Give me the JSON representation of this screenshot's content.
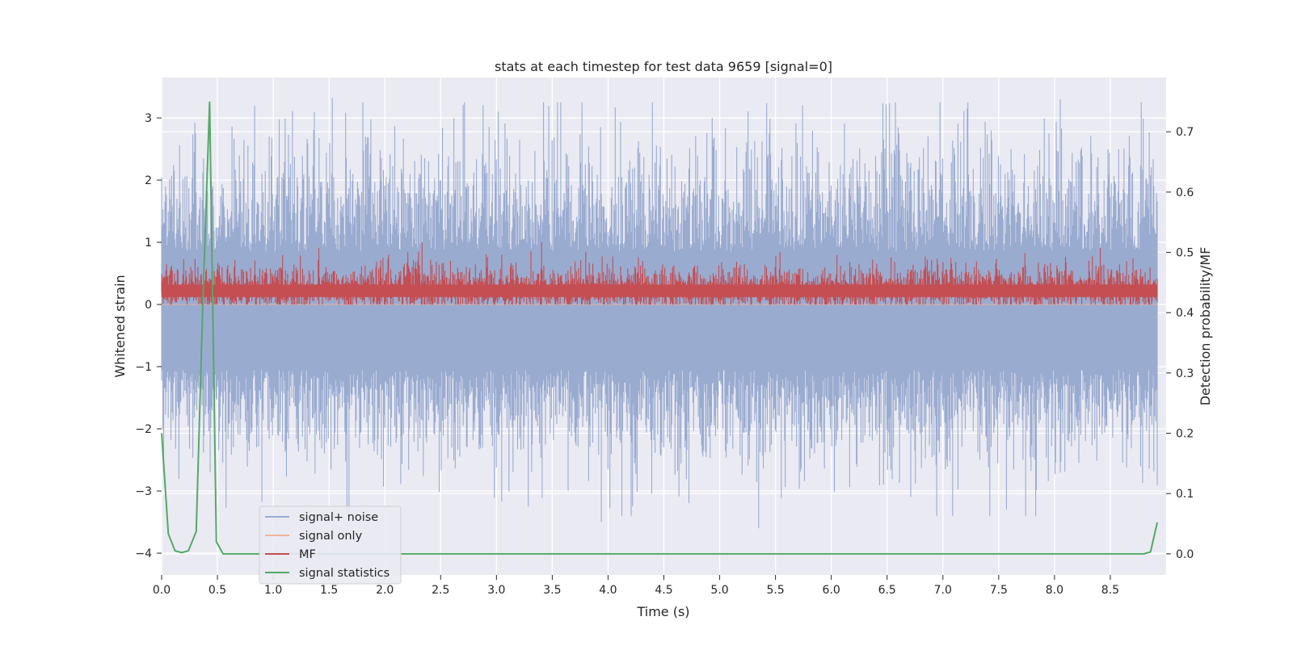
{
  "chart_data": {
    "type": "line",
    "title": "stats at each timestep for test data 9659 [signal=0]",
    "xlabel": "Time (s)",
    "ylabel": "Whitened strain",
    "y2label": "Detection probability/MF",
    "xlim": [
      0,
      9.0
    ],
    "ylim": [
      -4.35,
      3.65
    ],
    "y2lim": [
      -0.035,
      0.79
    ],
    "xticks": [
      "0.0",
      "0.5",
      "1.0",
      "1.5",
      "2.0",
      "2.5",
      "3.0",
      "3.5",
      "4.0",
      "4.5",
      "5.0",
      "5.5",
      "6.0",
      "6.5",
      "7.0",
      "7.5",
      "8.0",
      "8.5"
    ],
    "yticks": [
      "−4",
      "−3",
      "−2",
      "−1",
      "0",
      "1",
      "2",
      "3"
    ],
    "y2ticks": [
      "0.0",
      "0.1",
      "0.2",
      "0.3",
      "0.4",
      "0.5",
      "0.6",
      "0.7"
    ],
    "grid": true,
    "legend_position": "lower-left",
    "legend": [
      "signal+ noise",
      "signal only",
      "MF",
      "signal statistics"
    ],
    "colors": {
      "signal_noise": "#9aabd0",
      "signal_only": "#f0b49a",
      "mf": "#c44e52",
      "signal_statistics": "#55a868",
      "plot_bg": "#eaeaf2",
      "grid": "#ffffff"
    },
    "series": [
      {
        "name": "signal+ noise",
        "axis": "left",
        "description_range": [
          -3.6,
          3.35
        ],
        "highlights": [
          {
            "x": 1.53,
            "y": 3.32
          },
          {
            "x": 8.05,
            "y": 3.3
          },
          {
            "x": 3.94,
            "y": -3.5
          },
          {
            "x": 5.35,
            "y": -3.6
          },
          {
            "x": 7.57,
            "y": -3.3
          }
        ]
      },
      {
        "name": "signal only",
        "axis": "left",
        "values": [
          0,
          0
        ]
      },
      {
        "name": "MF",
        "axis": "left",
        "description_range": [
          0.0,
          1.0
        ]
      },
      {
        "name": "signal statistics",
        "axis": "right",
        "x": [
          0.0,
          0.06,
          0.12,
          0.18,
          0.24,
          0.31,
          0.37,
          0.43,
          0.49,
          0.55,
          0.62,
          1.0,
          2.0,
          3.0,
          4.0,
          5.0,
          6.0,
          7.0,
          8.0,
          8.8,
          8.86,
          8.92
        ],
        "y": [
          0.2,
          0.033,
          0.005,
          0.002,
          0.005,
          0.037,
          0.42,
          0.75,
          0.02,
          0.0,
          0.0,
          0.0,
          0.0,
          0.0,
          0.0,
          0.0,
          0.0,
          0.0,
          0.0,
          0.0,
          0.003,
          0.052
        ]
      }
    ]
  }
}
